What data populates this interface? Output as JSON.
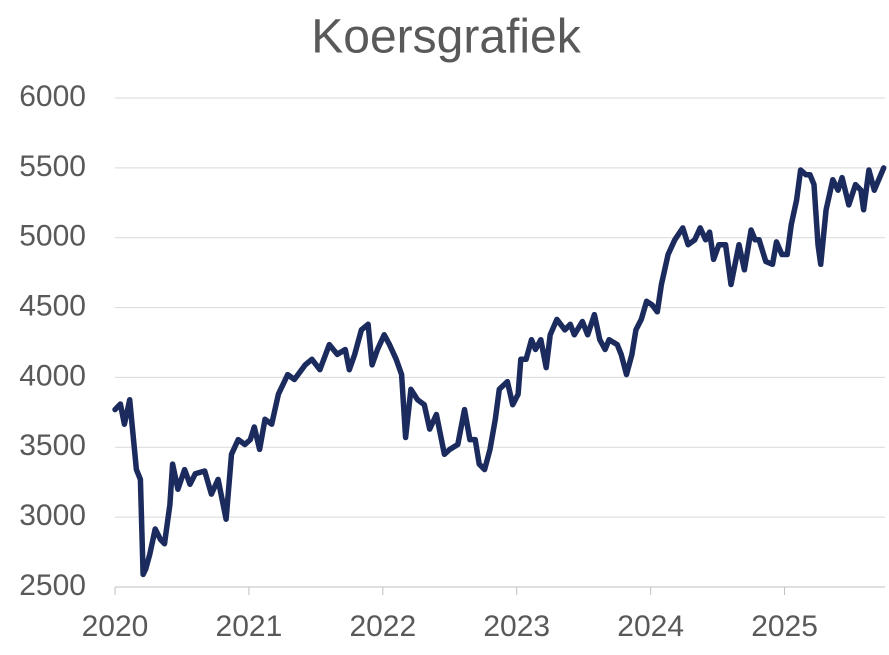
{
  "chart_data": {
    "type": "line",
    "title": "Koersgrafiek",
    "x": [
      2020.0,
      2020.04,
      2020.07,
      2020.11,
      2020.16,
      2020.19,
      2020.21,
      2020.23,
      2020.26,
      2020.3,
      2020.34,
      2020.37,
      2020.41,
      2020.43,
      2020.47,
      2020.52,
      2020.56,
      2020.6,
      2020.67,
      2020.72,
      2020.77,
      2020.83,
      2020.87,
      2020.92,
      2020.97,
      2021.01,
      2021.04,
      2021.08,
      2021.12,
      2021.17,
      2021.22,
      2021.29,
      2021.34,
      2021.42,
      2021.47,
      2021.53,
      2021.6,
      2021.66,
      2021.72,
      2021.75,
      2021.79,
      2021.84,
      2021.89,
      2021.92,
      2021.96,
      2022.01,
      2022.05,
      2022.1,
      2022.14,
      2022.17,
      2022.21,
      2022.26,
      2022.31,
      2022.35,
      2022.4,
      2022.46,
      2022.5,
      2022.56,
      2022.61,
      2022.65,
      2022.69,
      2022.72,
      2022.76,
      2022.8,
      2022.84,
      2022.87,
      2022.93,
      2022.97,
      2023.01,
      2023.03,
      2023.07,
      2023.11,
      2023.14,
      2023.18,
      2023.22,
      2023.25,
      2023.3,
      2023.36,
      2023.4,
      2023.43,
      2023.49,
      2023.53,
      2023.58,
      2023.62,
      2023.66,
      2023.69,
      2023.75,
      2023.78,
      2023.82,
      2023.86,
      2023.89,
      2023.93,
      2023.97,
      2024.01,
      2024.05,
      2024.08,
      2024.13,
      2024.18,
      2024.24,
      2024.28,
      2024.33,
      2024.37,
      2024.41,
      2024.44,
      2024.47,
      2024.51,
      2024.56,
      2024.6,
      2024.63,
      2024.66,
      2024.7,
      2024.75,
      2024.78,
      2024.81,
      2024.86,
      2024.91,
      2024.94,
      2024.98,
      2025.02,
      2025.05,
      2025.09,
      2025.12,
      2025.16,
      2025.19,
      2025.22,
      2025.25,
      2025.27,
      2025.31,
      2025.36,
      2025.4,
      2025.43,
      2025.48,
      2025.53,
      2025.57,
      2025.59,
      2025.63,
      2025.67,
      2025.74
    ],
    "values": [
      3770,
      3810,
      3665,
      3840,
      3340,
      3270,
      2590,
      2630,
      2735,
      2915,
      2840,
      2810,
      3090,
      3380,
      3200,
      3340,
      3235,
      3310,
      3330,
      3165,
      3270,
      2985,
      3450,
      3555,
      3520,
      3555,
      3645,
      3485,
      3700,
      3665,
      3880,
      4020,
      3985,
      4090,
      4130,
      4055,
      4235,
      4165,
      4200,
      4055,
      4165,
      4340,
      4380,
      4090,
      4200,
      4305,
      4235,
      4130,
      4020,
      3570,
      3915,
      3840,
      3805,
      3630,
      3735,
      3450,
      3485,
      3520,
      3770,
      3555,
      3555,
      3380,
      3340,
      3485,
      3700,
      3915,
      3970,
      3805,
      3880,
      4130,
      4130,
      4270,
      4200,
      4270,
      4070,
      4305,
      4415,
      4340,
      4380,
      4305,
      4400,
      4305,
      4450,
      4270,
      4200,
      4270,
      4235,
      4165,
      4020,
      4165,
      4340,
      4415,
      4545,
      4520,
      4470,
      4665,
      4880,
      4985,
      5070,
      4950,
      4985,
      5070,
      4985,
      5040,
      4845,
      4950,
      4950,
      4665,
      4810,
      4950,
      4770,
      5055,
      4985,
      4985,
      4830,
      4810,
      4970,
      4880,
      4880,
      5095,
      5270,
      5485,
      5450,
      5450,
      5380,
      4950,
      4810,
      5200,
      5415,
      5340,
      5430,
      5235,
      5380,
      5340,
      5200,
      5485,
      5340,
      5500
    ],
    "color": "#1c2b5e",
    "xlim": [
      2020,
      2025.75
    ],
    "xticks": [
      2020,
      2021,
      2022,
      2023,
      2024,
      2025
    ],
    "ylim": [
      2500,
      6000
    ],
    "yticks": [
      2500,
      3000,
      3500,
      4000,
      4500,
      5000,
      5500,
      6000
    ],
    "grid": true
  }
}
